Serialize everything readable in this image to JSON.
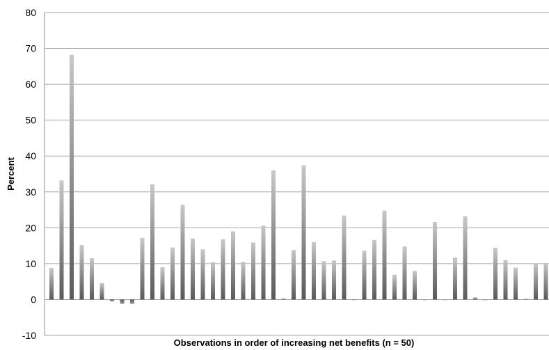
{
  "chart_data": {
    "type": "bar",
    "title": "",
    "xlabel": "Observations in order of increasing net benefits (n = 50)",
    "ylabel": "Percent",
    "ylim": [
      -10,
      80
    ],
    "yticks": [
      -10,
      0,
      10,
      20,
      30,
      40,
      50,
      60,
      70,
      80
    ],
    "grid": true,
    "legend": "none",
    "bar_color": "#8c8c8c",
    "grid_color": "#a6a6a6",
    "values": [
      8.8,
      33.2,
      68.2,
      15.2,
      11.5,
      4.6,
      -0.5,
      -1.2,
      -1.2,
      17.2,
      32.1,
      9.0,
      14.5,
      26.4,
      17.0,
      14.0,
      10.4,
      16.8,
      19.0,
      10.5,
      15.9,
      20.6,
      36.0,
      0.3,
      13.8,
      37.4,
      16.0,
      10.7,
      10.9,
      23.4,
      -0.1,
      13.6,
      16.6,
      24.8,
      6.9,
      14.8,
      8.0,
      0.0,
      21.6,
      0.0,
      11.7,
      23.2,
      0.6,
      0.0,
      14.4,
      11.0,
      8.9,
      0.2,
      10.2,
      10.2
    ]
  }
}
